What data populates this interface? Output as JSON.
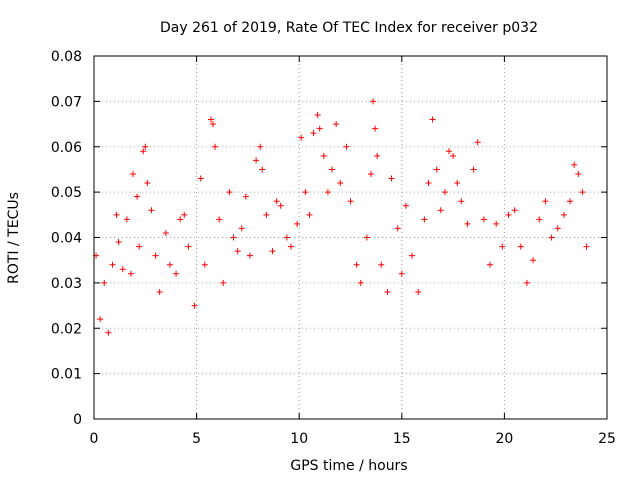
{
  "chart_data": {
    "type": "scatter",
    "title": "Day 261 of 2019, Rate Of TEC Index for receiver p032",
    "xlabel": "GPS time / hours",
    "ylabel": "ROTI / TECUs",
    "xlim": [
      0,
      25
    ],
    "ylim": [
      0,
      0.08
    ],
    "xticks": [
      "0",
      "5",
      "10",
      "15",
      "20",
      "25"
    ],
    "yticks": [
      "0",
      "0.01",
      "0.02",
      "0.03",
      "0.04",
      "0.05",
      "0.06",
      "0.07",
      "0.08"
    ],
    "grid": true,
    "marker": "+",
    "series": [
      {
        "color": "#ff0000",
        "points": [
          [
            0.1,
            0.036
          ],
          [
            0.3,
            0.022
          ],
          [
            0.5,
            0.03
          ],
          [
            0.7,
            0.019
          ],
          [
            0.9,
            0.034
          ],
          [
            1.1,
            0.045
          ],
          [
            1.2,
            0.039
          ],
          [
            1.4,
            0.033
          ],
          [
            1.6,
            0.044
          ],
          [
            1.8,
            0.032
          ],
          [
            1.9,
            0.054
          ],
          [
            2.1,
            0.049
          ],
          [
            2.2,
            0.038
          ],
          [
            2.4,
            0.059
          ],
          [
            2.5,
            0.06
          ],
          [
            2.6,
            0.052
          ],
          [
            2.8,
            0.046
          ],
          [
            3.0,
            0.036
          ],
          [
            3.2,
            0.028
          ],
          [
            3.5,
            0.041
          ],
          [
            3.7,
            0.034
          ],
          [
            4.0,
            0.032
          ],
          [
            4.2,
            0.044
          ],
          [
            4.4,
            0.045
          ],
          [
            4.6,
            0.038
          ],
          [
            4.9,
            0.025
          ],
          [
            5.2,
            0.053
          ],
          [
            5.4,
            0.034
          ],
          [
            5.7,
            0.066
          ],
          [
            5.8,
            0.065
          ],
          [
            5.9,
            0.06
          ],
          [
            6.1,
            0.044
          ],
          [
            6.3,
            0.03
          ],
          [
            6.6,
            0.05
          ],
          [
            6.8,
            0.04
          ],
          [
            7.0,
            0.037
          ],
          [
            7.2,
            0.042
          ],
          [
            7.4,
            0.049
          ],
          [
            7.6,
            0.036
          ],
          [
            7.9,
            0.057
          ],
          [
            8.1,
            0.06
          ],
          [
            8.2,
            0.055
          ],
          [
            8.4,
            0.045
          ],
          [
            8.7,
            0.037
          ],
          [
            8.9,
            0.048
          ],
          [
            9.1,
            0.047
          ],
          [
            9.4,
            0.04
          ],
          [
            9.6,
            0.038
          ],
          [
            9.9,
            0.043
          ],
          [
            10.1,
            0.062
          ],
          [
            10.3,
            0.05
          ],
          [
            10.5,
            0.045
          ],
          [
            10.7,
            0.063
          ],
          [
            10.9,
            0.067
          ],
          [
            11.0,
            0.064
          ],
          [
            11.2,
            0.058
          ],
          [
            11.4,
            0.05
          ],
          [
            11.6,
            0.055
          ],
          [
            11.8,
            0.065
          ],
          [
            12.0,
            0.052
          ],
          [
            12.3,
            0.06
          ],
          [
            12.5,
            0.048
          ],
          [
            12.8,
            0.034
          ],
          [
            13.0,
            0.03
          ],
          [
            13.3,
            0.04
          ],
          [
            13.5,
            0.054
          ],
          [
            13.6,
            0.07
          ],
          [
            13.7,
            0.064
          ],
          [
            13.8,
            0.058
          ],
          [
            14.0,
            0.034
          ],
          [
            14.3,
            0.028
          ],
          [
            14.5,
            0.053
          ],
          [
            14.8,
            0.042
          ],
          [
            15.0,
            0.032
          ],
          [
            15.2,
            0.047
          ],
          [
            15.5,
            0.036
          ],
          [
            15.8,
            0.028
          ],
          [
            16.1,
            0.044
          ],
          [
            16.3,
            0.052
          ],
          [
            16.5,
            0.066
          ],
          [
            16.7,
            0.055
          ],
          [
            16.9,
            0.046
          ],
          [
            17.1,
            0.05
          ],
          [
            17.3,
            0.059
          ],
          [
            17.5,
            0.058
          ],
          [
            17.7,
            0.052
          ],
          [
            17.9,
            0.048
          ],
          [
            18.2,
            0.043
          ],
          [
            18.5,
            0.055
          ],
          [
            18.7,
            0.061
          ],
          [
            19.0,
            0.044
          ],
          [
            19.3,
            0.034
          ],
          [
            19.6,
            0.043
          ],
          [
            19.9,
            0.038
          ],
          [
            20.2,
            0.045
          ],
          [
            20.5,
            0.046
          ],
          [
            20.8,
            0.038
          ],
          [
            21.1,
            0.03
          ],
          [
            21.4,
            0.035
          ],
          [
            21.7,
            0.044
          ],
          [
            22.0,
            0.048
          ],
          [
            22.3,
            0.04
          ],
          [
            22.6,
            0.042
          ],
          [
            22.9,
            0.045
          ],
          [
            23.2,
            0.048
          ],
          [
            23.4,
            0.056
          ],
          [
            23.6,
            0.054
          ],
          [
            23.8,
            0.05
          ],
          [
            24.0,
            0.038
          ]
        ]
      }
    ]
  }
}
